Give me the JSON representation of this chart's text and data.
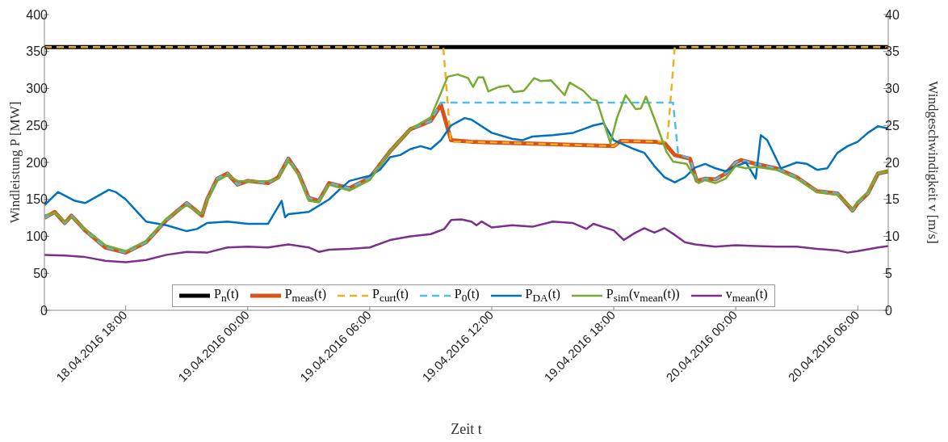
{
  "chart_data": {
    "type": "line",
    "xlabel": "Zeit t",
    "ylabel": "Windleistung P [MW]",
    "y2label": "Windgeschwindigkeit v [m/s]",
    "xlim": [
      "2016-04-18T14:00",
      "2016-04-20T07:30"
    ],
    "xticks": [
      {
        "value": "2016-04-18T18:00",
        "label": "18.04.2016 18:00"
      },
      {
        "value": "2016-04-19T00:00",
        "label": "19.04.2016 00:00"
      },
      {
        "value": "2016-04-19T06:00",
        "label": "19.04.2016 06:00"
      },
      {
        "value": "2016-04-19T12:00",
        "label": "19.04.2016 12:00"
      },
      {
        "value": "2016-04-19T18:00",
        "label": "19.04.2016 18:00"
      },
      {
        "value": "2016-04-20T00:00",
        "label": "20.04.2016 00:00"
      },
      {
        "value": "2016-04-20T06:00",
        "label": "20.04.2016 06:00"
      }
    ],
    "ylim": [
      0,
      400
    ],
    "yticks": [
      0,
      50,
      100,
      150,
      200,
      250,
      300,
      350,
      400
    ],
    "y2lim": [
      0,
      40
    ],
    "y2ticks": [
      0,
      5,
      10,
      15,
      20,
      25,
      30,
      35,
      40
    ],
    "grid": false,
    "legend": "bottom",
    "marker": "none",
    "series": [
      {
        "name": "P$_{n}$(t)",
        "color": "#000000",
        "line_style": "solid",
        "x": [
          "2016-04-18T14:00",
          "2016-04-20T07:30"
        ],
        "values": [
          356,
          356
        ]
      },
      {
        "name": "P$_{meas}$(t)",
        "color": "#d95319",
        "line_style": "solid",
        "x": [
          "2016-04-18T14:00",
          "2016-04-18T14:30",
          "2016-04-18T15:00",
          "2016-04-18T15:20",
          "2016-04-18T16:00",
          "2016-04-18T17:00",
          "2016-04-18T18:00",
          "2016-04-18T19:00",
          "2016-04-18T20:00",
          "2016-04-18T21:00",
          "2016-04-18T21:45",
          "2016-04-18T22:00",
          "2016-04-18T22:30",
          "2016-04-18T23:00",
          "2016-04-18T23:30",
          "2016-04-19T00:00",
          "2016-04-19T01:00",
          "2016-04-19T01:30",
          "2016-04-19T02:00",
          "2016-04-19T02:30",
          "2016-04-19T03:00",
          "2016-04-19T03:30",
          "2016-04-19T04:00",
          "2016-04-19T05:00",
          "2016-04-19T06:00",
          "2016-04-19T07:00",
          "2016-04-19T08:00",
          "2016-04-19T09:00",
          "2016-04-19T09:30",
          "2016-04-19T10:00",
          "2016-04-19T11:00",
          "2016-04-19T18:00",
          "2016-04-19T18:20",
          "2016-04-19T20:00",
          "2016-04-19T20:30",
          "2016-04-19T21:00",
          "2016-04-19T21:45",
          "2016-04-19T22:05",
          "2016-04-19T22:30",
          "2016-04-19T23:00",
          "2016-04-19T23:30",
          "2016-04-20T00:00",
          "2016-04-20T00:15",
          "2016-04-20T01:00",
          "2016-04-20T02:00",
          "2016-04-20T03:00",
          "2016-04-20T04:00",
          "2016-04-20T05:00",
          "2016-04-20T05:45",
          "2016-04-20T06:00",
          "2016-04-20T06:30",
          "2016-04-20T07:00",
          "2016-04-20T07:30"
        ],
        "values": [
          125,
          133,
          118,
          128,
          108,
          85,
          78,
          92,
          122,
          145,
          128,
          150,
          178,
          185,
          170,
          175,
          172,
          180,
          205,
          185,
          152,
          148,
          172,
          165,
          179,
          215,
          245,
          256,
          278,
          230,
          228,
          222,
          229,
          228,
          226,
          210,
          205,
          175,
          178,
          177,
          185,
          200,
          203,
          198,
          192,
          180,
          161,
          158,
          135,
          145,
          158,
          185,
          188
        ]
      },
      {
        "name": "P$_{curt}$(t)",
        "color": "#edb120",
        "line_style": "dashed",
        "x": [
          "2016-04-18T14:00",
          "2016-04-19T09:37",
          "2016-04-19T09:59",
          "2016-04-19T11:00",
          "2016-04-19T18:00",
          "2016-04-19T18:20",
          "2016-04-19T20:38",
          "2016-04-19T21:00",
          "2016-04-20T07:30"
        ],
        "values": [
          356,
          356,
          228,
          228,
          222,
          229,
          228,
          356,
          356
        ]
      },
      {
        "name": "P$_{0}$(t)",
        "color": "#4dbeee",
        "line_style": "dashed",
        "x": [
          "2016-04-18T14:00",
          "2016-04-18T14:30",
          "2016-04-18T15:00",
          "2016-04-18T15:20",
          "2016-04-18T16:00",
          "2016-04-18T17:00",
          "2016-04-18T18:00",
          "2016-04-18T19:00",
          "2016-04-18T20:00",
          "2016-04-18T21:00",
          "2016-04-18T21:45",
          "2016-04-18T22:00",
          "2016-04-18T22:30",
          "2016-04-18T23:00",
          "2016-04-18T23:30",
          "2016-04-19T00:00",
          "2016-04-19T01:00",
          "2016-04-19T01:30",
          "2016-04-19T02:00",
          "2016-04-19T02:30",
          "2016-04-19T03:00",
          "2016-04-19T03:30",
          "2016-04-19T04:00",
          "2016-04-19T05:00",
          "2016-04-19T06:00",
          "2016-04-19T07:00",
          "2016-04-19T08:00",
          "2016-04-19T09:00",
          "2016-04-19T09:30",
          "2016-04-19T20:55",
          "2016-04-19T21:10",
          "2016-04-19T21:45",
          "2016-04-19T22:05",
          "2016-04-19T22:30",
          "2016-04-19T23:00",
          "2016-04-19T23:30",
          "2016-04-20T00:00",
          "2016-04-20T00:15",
          "2016-04-20T01:00",
          "2016-04-20T02:00",
          "2016-04-20T03:00",
          "2016-04-20T04:00",
          "2016-04-20T05:00",
          "2016-04-20T05:45",
          "2016-04-20T06:00",
          "2016-04-20T06:30",
          "2016-04-20T07:00",
          "2016-04-20T07:30"
        ],
        "values": [
          125,
          133,
          118,
          128,
          108,
          85,
          78,
          92,
          122,
          145,
          128,
          150,
          178,
          185,
          170,
          175,
          172,
          180,
          205,
          185,
          152,
          148,
          172,
          165,
          179,
          215,
          245,
          256,
          281,
          281,
          212,
          205,
          175,
          178,
          177,
          185,
          200,
          203,
          198,
          192,
          180,
          161,
          158,
          135,
          145,
          158,
          185,
          188
        ]
      },
      {
        "name": "P$_{DA}$(t)",
        "color": "#0072bd",
        "line_style": "solid",
        "x": [
          "2016-04-18T14:00",
          "2016-04-18T14:40",
          "2016-04-18T15:30",
          "2016-04-18T16:00",
          "2016-04-18T17:10",
          "2016-04-18T17:30",
          "2016-04-18T18:00",
          "2016-04-18T19:00",
          "2016-04-18T20:00",
          "2016-04-18T21:00",
          "2016-04-18T21:30",
          "2016-04-18T22:00",
          "2016-04-18T23:00",
          "2016-04-19T00:00",
          "2016-04-19T01:00",
          "2016-04-19T01:40",
          "2016-04-19T01:50",
          "2016-04-19T02:00",
          "2016-04-19T03:00",
          "2016-04-19T04:00",
          "2016-04-19T04:30",
          "2016-04-19T05:00",
          "2016-04-19T06:00",
          "2016-04-19T06:30",
          "2016-04-19T07:00",
          "2016-04-19T07:30",
          "2016-04-19T08:00",
          "2016-04-19T08:30",
          "2016-04-19T09:00",
          "2016-04-19T09:30",
          "2016-04-19T10:00",
          "2016-04-19T10:40",
          "2016-04-19T11:00",
          "2016-04-19T12:00",
          "2016-04-19T13:00",
          "2016-04-19T13:30",
          "2016-04-19T14:00",
          "2016-04-19T15:00",
          "2016-04-19T16:00",
          "2016-04-19T16:30",
          "2016-04-19T17:00",
          "2016-04-19T17:30",
          "2016-04-19T18:00",
          "2016-04-19T19:00",
          "2016-04-19T19:30",
          "2016-04-19T20:00",
          "2016-04-19T20:30",
          "2016-04-19T21:00",
          "2016-04-19T21:30",
          "2016-04-19T22:00",
          "2016-04-19T22:30",
          "2016-04-19T23:00",
          "2016-04-19T23:30",
          "2016-04-20T00:00",
          "2016-04-20T00:30",
          "2016-04-20T00:59",
          "2016-04-20T01:14",
          "2016-04-20T01:33",
          "2016-04-20T02:13",
          "2016-04-20T03:00",
          "2016-04-20T03:30",
          "2016-04-20T04:00",
          "2016-04-20T04:30",
          "2016-04-20T05:00",
          "2016-04-20T05:30",
          "2016-04-20T06:00",
          "2016-04-20T06:30",
          "2016-04-20T07:00",
          "2016-04-20T07:30"
        ],
        "values": [
          142,
          160,
          148,
          145,
          163,
          160,
          150,
          120,
          115,
          107,
          110,
          118,
          120,
          117,
          117,
          148,
          126,
          130,
          133,
          150,
          163,
          175,
          182,
          190,
          207,
          210,
          218,
          222,
          218,
          230,
          250,
          260,
          258,
          240,
          232,
          230,
          235,
          237,
          240,
          245,
          250,
          253,
          230,
          218,
          213,
          195,
          180,
          173,
          180,
          193,
          198,
          192,
          188,
          195,
          200,
          178,
          237,
          230,
          192,
          200,
          198,
          190,
          192,
          213,
          222,
          228,
          240,
          249,
          246
        ]
      },
      {
        "name": "P$_{sim}$(v$_{mean}$(t))",
        "color": "#77ac30",
        "line_style": "solid",
        "x": [
          "2016-04-18T14:00",
          "2016-04-18T14:30",
          "2016-04-18T15:00",
          "2016-04-18T15:20",
          "2016-04-18T16:00",
          "2016-04-18T17:00",
          "2016-04-18T18:00",
          "2016-04-18T19:00",
          "2016-04-18T20:00",
          "2016-04-18T21:00",
          "2016-04-18T21:45",
          "2016-04-18T22:00",
          "2016-04-18T22:30",
          "2016-04-18T23:00",
          "2016-04-18T23:30",
          "2016-04-19T00:00",
          "2016-04-19T01:00",
          "2016-04-19T01:30",
          "2016-04-19T02:00",
          "2016-04-19T02:30",
          "2016-04-19T03:00",
          "2016-04-19T03:30",
          "2016-04-19T04:00",
          "2016-04-19T05:00",
          "2016-04-19T06:00",
          "2016-04-19T07:00",
          "2016-04-19T08:00",
          "2016-04-19T09:00",
          "2016-04-19T09:50",
          "2016-04-19T10:20",
          "2016-04-19T10:50",
          "2016-04-19T11:05",
          "2016-04-19T11:20",
          "2016-04-19T11:35",
          "2016-04-19T11:50",
          "2016-04-19T12:20",
          "2016-04-19T12:50",
          "2016-04-19T13:05",
          "2016-04-19T13:35",
          "2016-04-19T14:05",
          "2016-04-19T14:25",
          "2016-04-19T14:55",
          "2016-04-19T15:35",
          "2016-04-19T15:50",
          "2016-04-19T16:30",
          "2016-04-19T16:55",
          "2016-04-19T17:10",
          "2016-04-19T17:50",
          "2016-04-19T18:10",
          "2016-04-19T18:35",
          "2016-04-19T19:05",
          "2016-04-19T19:20",
          "2016-04-19T19:35",
          "2016-04-19T20:00",
          "2016-04-19T20:35",
          "2016-04-19T20:55",
          "2016-04-19T21:35",
          "2016-04-19T21:55",
          "2016-04-19T22:10",
          "2016-04-19T22:30",
          "2016-04-19T23:00",
          "2016-04-19T23:30",
          "2016-04-20T00:00",
          "2016-04-20T00:30",
          "2016-04-20T01:00",
          "2016-04-20T02:00",
          "2016-04-20T03:00",
          "2016-04-20T04:00",
          "2016-04-20T05:00",
          "2016-04-20T05:45",
          "2016-04-20T06:00",
          "2016-04-20T06:30",
          "2016-04-20T07:00",
          "2016-04-20T07:30"
        ],
        "values": [
          128,
          132,
          120,
          126,
          110,
          88,
          80,
          94,
          124,
          142,
          130,
          148,
          175,
          183,
          175,
          174,
          175,
          178,
          202,
          183,
          148,
          146,
          170,
          162,
          176,
          215,
          245,
          261,
          316,
          319,
          314,
          302,
          315,
          315,
          296,
          302,
          304,
          295,
          297,
          314,
          310,
          311,
          291,
          308,
          297,
          285,
          284,
          226,
          261,
          291,
          272,
          273,
          289,
          259,
          215,
          201,
          198,
          183,
          172,
          176,
          172,
          178,
          195,
          192,
          194,
          190,
          178,
          160,
          156,
          137,
          147,
          160,
          186,
          188
        ]
      },
      {
        "name": "v$_{mean}$(t)",
        "color": "#7e2f8e",
        "line_style": "solid",
        "axis": "y2",
        "x": [
          "2016-04-18T14:00",
          "2016-04-18T15:00",
          "2016-04-18T16:00",
          "2016-04-18T17:00",
          "2016-04-18T18:00",
          "2016-04-18T19:00",
          "2016-04-18T20:00",
          "2016-04-18T21:00",
          "2016-04-18T22:00",
          "2016-04-18T23:00",
          "2016-04-19T00:00",
          "2016-04-19T01:00",
          "2016-04-19T02:00",
          "2016-04-19T03:00",
          "2016-04-19T03:30",
          "2016-04-19T04:00",
          "2016-04-19T05:00",
          "2016-04-19T06:00",
          "2016-04-19T07:00",
          "2016-04-19T08:00",
          "2016-04-19T09:00",
          "2016-04-19T09:40",
          "2016-04-19T10:00",
          "2016-04-19T10:30",
          "2016-04-19T11:00",
          "2016-04-19T11:15",
          "2016-04-19T11:30",
          "2016-04-19T12:00",
          "2016-04-19T13:00",
          "2016-04-19T14:00",
          "2016-04-19T15:00",
          "2016-04-19T16:00",
          "2016-04-19T16:40",
          "2016-04-19T17:00",
          "2016-04-19T18:00",
          "2016-04-19T18:30",
          "2016-04-19T19:00",
          "2016-04-19T19:30",
          "2016-04-19T20:00",
          "2016-04-19T20:30",
          "2016-04-19T21:00",
          "2016-04-19T21:30",
          "2016-04-19T22:00",
          "2016-04-19T23:00",
          "2016-04-20T00:00",
          "2016-04-20T01:00",
          "2016-04-20T02:00",
          "2016-04-20T03:00",
          "2016-04-20T04:00",
          "2016-04-20T05:00",
          "2016-04-20T05:30",
          "2016-04-20T06:00",
          "2016-04-20T07:00",
          "2016-04-20T07:30"
        ],
        "values": [
          7.5,
          7.4,
          7.2,
          6.7,
          6.5,
          6.8,
          7.5,
          7.9,
          7.8,
          8.5,
          8.6,
          8.5,
          8.9,
          8.5,
          7.9,
          8.2,
          8.3,
          8.5,
          9.5,
          10.0,
          10.3,
          11.0,
          12.2,
          12.3,
          12.0,
          11.5,
          12.0,
          11.2,
          11.5,
          11.3,
          12.0,
          11.8,
          11.0,
          11.7,
          10.8,
          9.5,
          10.4,
          11.1,
          10.5,
          11.1,
          10.2,
          9.2,
          8.9,
          8.6,
          8.8,
          8.7,
          8.6,
          8.6,
          8.3,
          8.1,
          7.8,
          8.0,
          8.5,
          8.7
        ]
      }
    ]
  }
}
